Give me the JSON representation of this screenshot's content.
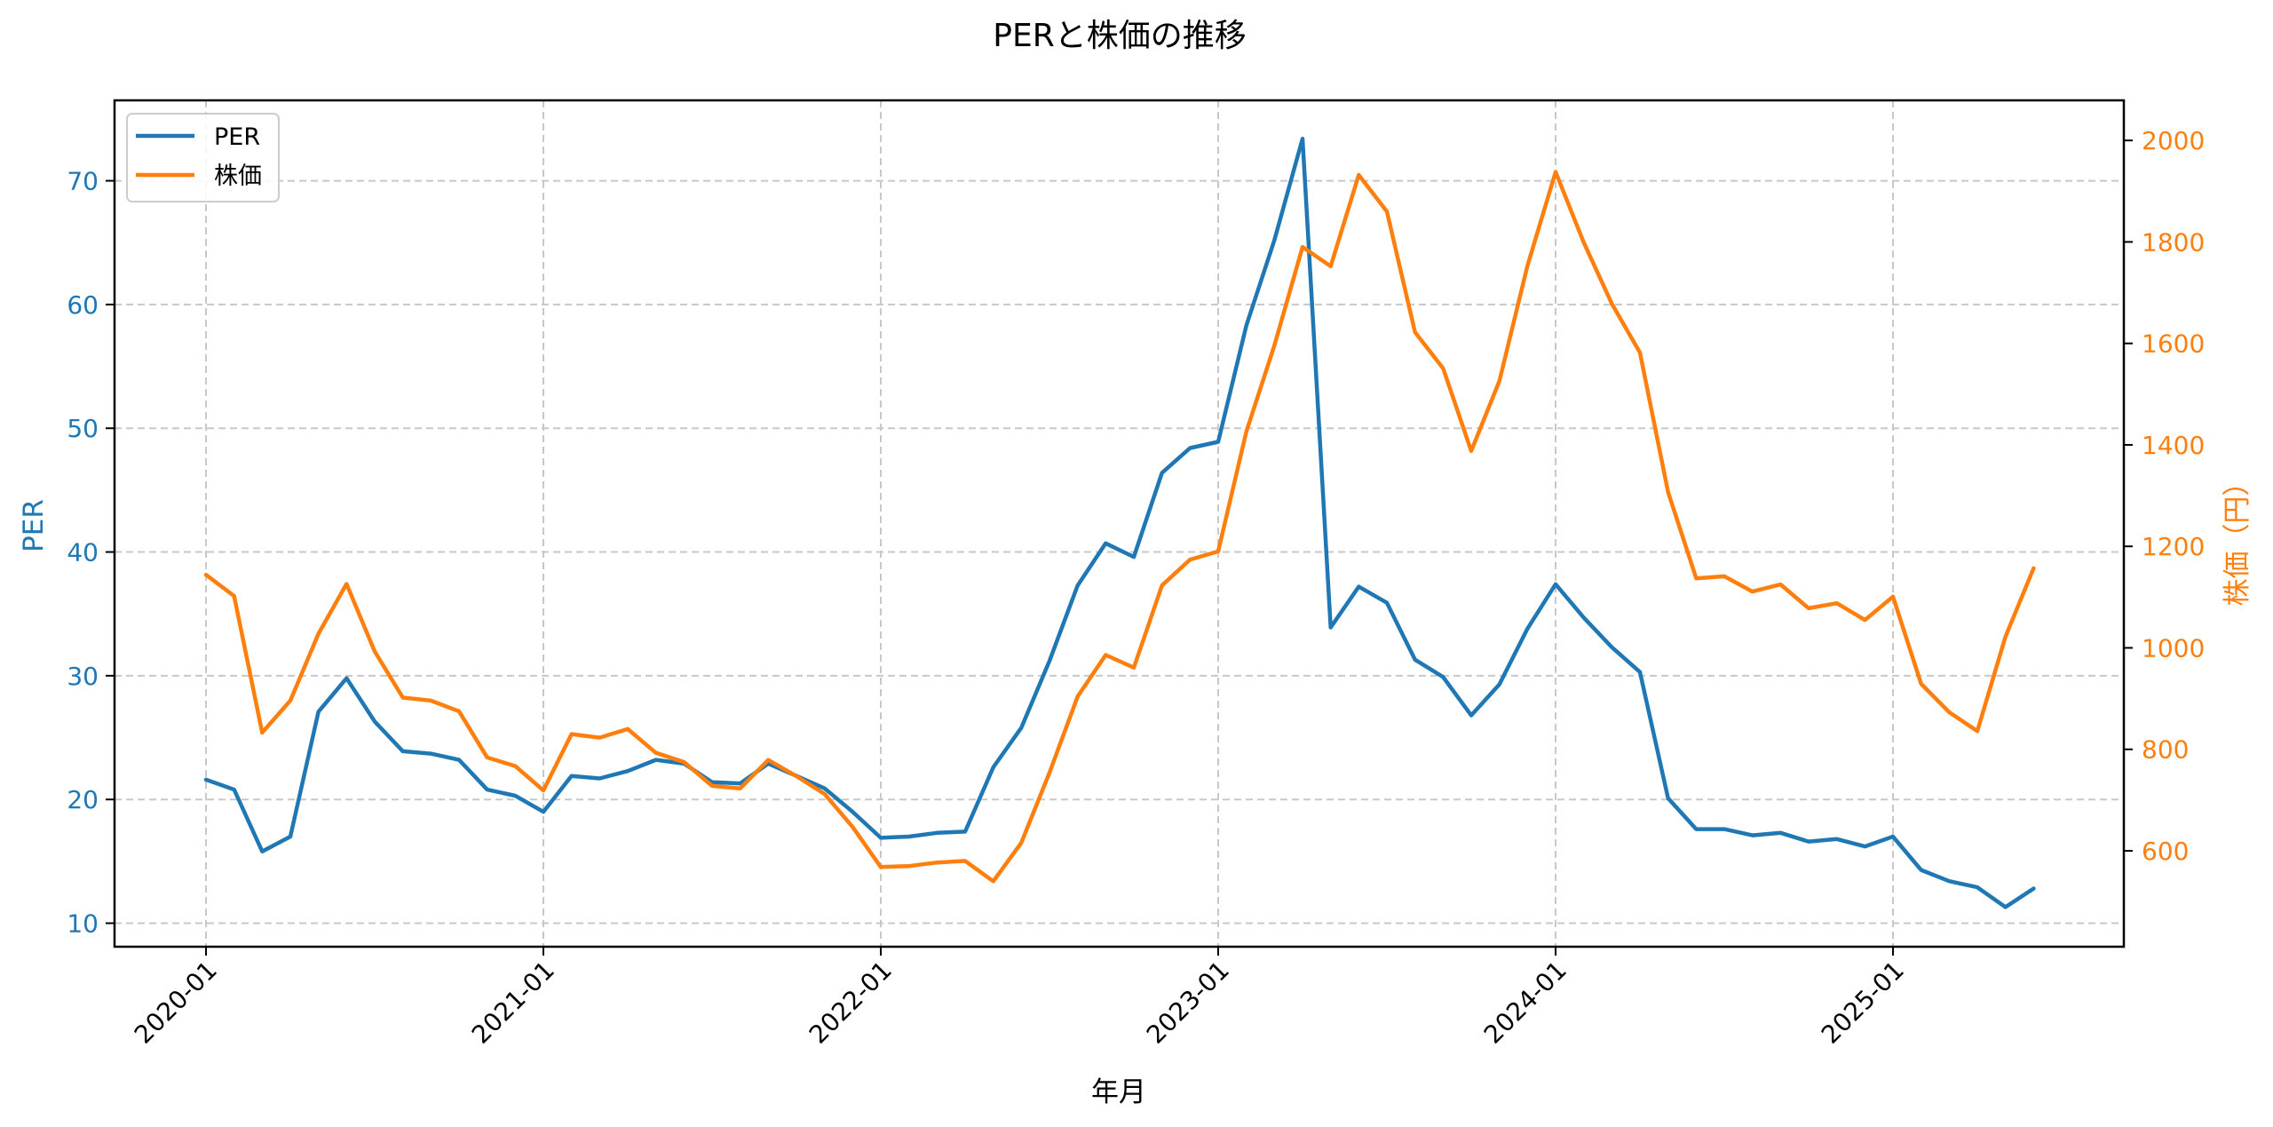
{
  "chart_data": {
    "type": "line",
    "title": "PERと株価の推移",
    "xlabel": "年月",
    "ylabel": "PER",
    "ylabel_right": "株価（円）",
    "x": [
      "2020-01",
      "2020-02",
      "2020-03",
      "2020-04",
      "2020-05",
      "2020-06",
      "2020-07",
      "2020-08",
      "2020-09",
      "2020-10",
      "2020-11",
      "2020-12",
      "2021-01",
      "2021-02",
      "2021-03",
      "2021-04",
      "2021-05",
      "2021-06",
      "2021-07",
      "2021-08",
      "2021-09",
      "2021-10",
      "2021-11",
      "2021-12",
      "2022-01",
      "2022-02",
      "2022-03",
      "2022-04",
      "2022-05",
      "2022-06",
      "2022-07",
      "2022-08",
      "2022-09",
      "2022-10",
      "2022-11",
      "2022-12",
      "2023-01",
      "2023-02",
      "2023-03",
      "2023-04",
      "2023-05",
      "2023-06",
      "2023-07",
      "2023-08",
      "2023-09",
      "2023-10",
      "2023-11",
      "2023-12",
      "2024-01",
      "2024-02",
      "2024-03",
      "2024-04",
      "2024-05",
      "2024-06",
      "2024-07",
      "2024-08",
      "2024-09",
      "2024-10",
      "2024-11",
      "2024-12",
      "2025-01",
      "2025-02",
      "2025-03",
      "2025-04",
      "2025-05",
      "2025-06"
    ],
    "x_ticks": [
      "2020-01",
      "2021-01",
      "2022-01",
      "2023-01",
      "2024-01",
      "2025-01"
    ],
    "series": [
      {
        "name": "PER",
        "axis": "left",
        "color": "#1f77b4",
        "values": [
          21.6,
          20.8,
          15.8,
          17.0,
          27.1,
          29.8,
          26.3,
          23.9,
          23.7,
          23.2,
          20.8,
          20.3,
          19.0,
          21.9,
          21.7,
          22.3,
          23.2,
          22.9,
          21.4,
          21.3,
          22.9,
          21.9,
          20.9,
          19.0,
          16.9,
          17.0,
          17.3,
          17.4,
          22.6,
          25.8,
          31.2,
          37.3,
          40.7,
          39.6,
          46.4,
          48.4,
          48.9,
          58.3,
          65.2,
          73.4,
          33.9,
          37.2,
          35.9,
          31.3,
          29.9,
          26.8,
          29.3,
          33.8,
          37.4,
          34.7,
          32.3,
          30.3,
          20.1,
          17.6,
          17.6,
          17.1,
          17.3,
          16.6,
          16.8,
          16.2,
          17.0,
          14.3,
          13.4,
          12.9,
          11.3,
          12.8
        ]
      },
      {
        "name": "株価",
        "axis": "right",
        "color": "#ff7f0e",
        "values": [
          1144,
          1102,
          833,
          896,
          1028,
          1126,
          993,
          902,
          896,
          875,
          784,
          767,
          719,
          830,
          823,
          840,
          793,
          775,
          728,
          723,
          779,
          747,
          712,
          647,
          568,
          570,
          577,
          580,
          540,
          616,
          754,
          904,
          986,
          961,
          1123,
          1174,
          1190,
          1426,
          1596,
          1790,
          1752,
          1932,
          1860,
          1622,
          1551,
          1388,
          1526,
          1753,
          1938,
          1799,
          1678,
          1582,
          1307,
          1137,
          1141,
          1111,
          1125,
          1078,
          1088,
          1055,
          1101,
          929,
          873,
          836,
          1022,
          1157
        ]
      }
    ],
    "y_left": {
      "ticks": [
        10,
        20,
        30,
        40,
        50,
        60,
        70
      ],
      "range": [
        8.1,
        76.5
      ],
      "color": "#1f77b4"
    },
    "y_right": {
      "ticks": [
        600,
        800,
        1000,
        1200,
        1400,
        1600,
        1800,
        2000
      ],
      "range": [
        411,
        2079
      ],
      "color": "#ff7f0e"
    },
    "grid": true,
    "legend_position": "upper left"
  },
  "legend": {
    "items": [
      {
        "label": "PER",
        "color": "#1f77b4"
      },
      {
        "label": "株価",
        "color": "#ff7f0e"
      }
    ]
  }
}
